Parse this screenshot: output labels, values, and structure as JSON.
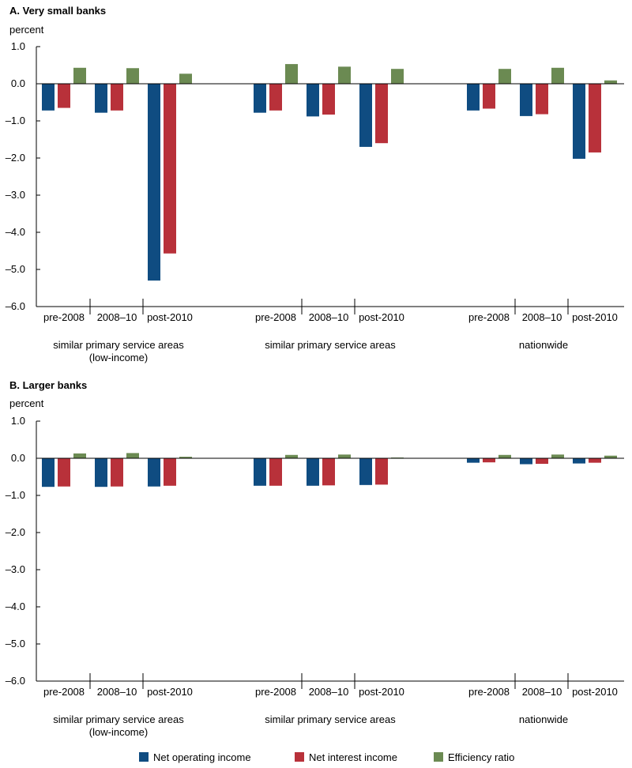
{
  "chart_data": [
    {
      "type": "bar",
      "title": "A. Very small banks",
      "ylabel": "percent",
      "ylim": [
        -6.0,
        1.0
      ],
      "yticks": [
        "1.0",
        "0.0",
        "–1.0",
        "–2.0",
        "–3.0",
        "–4.0",
        "–5.0",
        "–6.0"
      ],
      "groups": [
        {
          "label": [
            "similar primary service areas",
            "(low-income)"
          ],
          "categories": [
            "pre-2008",
            "2008–10",
            "post-2010"
          ]
        },
        {
          "label": [
            "similar primary service areas"
          ],
          "categories": [
            "pre-2008",
            "2008–10",
            "post-2010"
          ]
        },
        {
          "label": [
            "nationwide"
          ],
          "categories": [
            "pre-2008",
            "2008–10",
            "post-2010"
          ]
        }
      ],
      "series": [
        {
          "name": "Net operating income",
          "color": "#0f4c81",
          "values": [
            [
              -0.72,
              -0.78,
              -5.3
            ],
            [
              -0.78,
              -0.88,
              -1.7
            ],
            [
              -0.72,
              -0.87,
              -2.02
            ]
          ]
        },
        {
          "name": "Net interest income",
          "color": "#b8313a",
          "values": [
            [
              -0.65,
              -0.72,
              -4.57
            ],
            [
              -0.72,
              -0.83,
              -1.6
            ],
            [
              -0.67,
              -0.82,
              -1.85
            ]
          ]
        },
        {
          "name": "Efficiency ratio",
          "color": "#6b8a52",
          "values": [
            [
              0.43,
              0.42,
              0.27
            ],
            [
              0.53,
              0.46,
              0.4
            ],
            [
              0.4,
              0.43,
              0.09
            ]
          ]
        }
      ]
    },
    {
      "type": "bar",
      "title": "B. Larger banks",
      "ylabel": "percent",
      "ylim": [
        -6.0,
        1.0
      ],
      "yticks": [
        "1.0",
        "0.0",
        "–1.0",
        "–2.0",
        "–3.0",
        "–4.0",
        "–5.0",
        "–6.0"
      ],
      "groups": [
        {
          "label": [
            "similar primary service areas",
            "(low-income)"
          ],
          "categories": [
            "pre-2008",
            "2008–10",
            "post-2010"
          ]
        },
        {
          "label": [
            "similar primary service areas"
          ],
          "categories": [
            "pre-2008",
            "2008–10",
            "post-2010"
          ]
        },
        {
          "label": [
            "nationwide"
          ],
          "categories": [
            "pre-2008",
            "2008–10",
            "post-2010"
          ]
        }
      ],
      "series": [
        {
          "name": "Net operating income",
          "color": "#0f4c81",
          "values": [
            [
              -0.77,
              -0.77,
              -0.76
            ],
            [
              -0.74,
              -0.74,
              -0.72
            ],
            [
              -0.12,
              -0.16,
              -0.14
            ]
          ]
        },
        {
          "name": "Net interest income",
          "color": "#b8313a",
          "values": [
            [
              -0.76,
              -0.76,
              -0.74
            ],
            [
              -0.74,
              -0.73,
              -0.71
            ],
            [
              -0.11,
              -0.15,
              -0.12
            ]
          ]
        },
        {
          "name": "Efficiency ratio",
          "color": "#6b8a52",
          "values": [
            [
              0.13,
              0.14,
              0.04
            ],
            [
              0.09,
              0.1,
              0.02
            ],
            [
              0.09,
              0.1,
              0.07
            ]
          ]
        }
      ]
    }
  ],
  "legend": {
    "items": [
      {
        "label": "Net operating income",
        "color": "#0f4c81"
      },
      {
        "label": "Net interest income",
        "color": "#b8313a"
      },
      {
        "label": "Efficiency ratio",
        "color": "#6b8a52"
      }
    ]
  }
}
